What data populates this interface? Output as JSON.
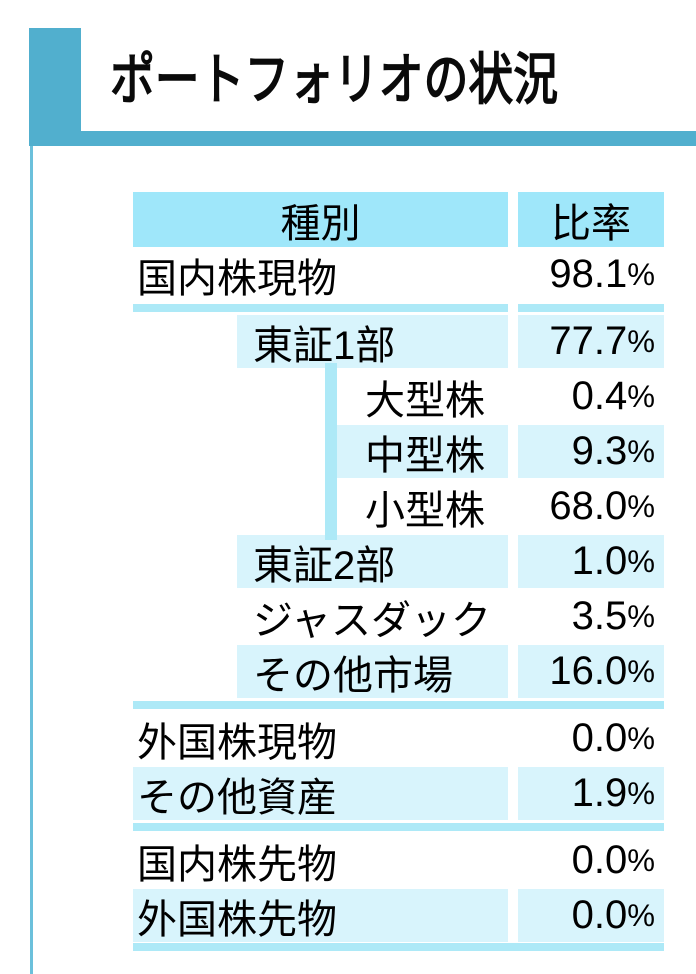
{
  "title": "ポートフォリオの状況",
  "colors": {
    "accent": "#51AFCE",
    "left_line": "#6BC0DB",
    "header_bg": "#9FE7FA",
    "separator": "#ADE9F7",
    "row_shade": "#D8F4FC"
  },
  "table": {
    "columns": {
      "type_label": "種別",
      "ratio_label": "比率"
    },
    "rows": [
      {
        "label": "国内株現物",
        "value": "98.1%",
        "level": 1,
        "shaded": false,
        "separator_before": false
      },
      {
        "label": "東証1部",
        "value": "77.7%",
        "level": 2,
        "shaded": true,
        "separator_before": true
      },
      {
        "label": "大型株",
        "value": "0.4%",
        "level": 3,
        "shaded": false,
        "separator_before": false
      },
      {
        "label": "中型株",
        "value": "9.3%",
        "level": 3,
        "shaded": true,
        "separator_before": false
      },
      {
        "label": "小型株",
        "value": "68.0%",
        "level": 3,
        "shaded": false,
        "separator_before": false
      },
      {
        "label": "東証2部",
        "value": "1.0%",
        "level": 2,
        "shaded": true,
        "separator_before": false
      },
      {
        "label": "ジャスダック",
        "value": "3.5%",
        "level": 2,
        "shaded": false,
        "separator_before": false
      },
      {
        "label": "その他市場",
        "value": "16.0%",
        "level": 2,
        "shaded": true,
        "separator_before": false
      },
      {
        "label": "外国株現物",
        "value": "0.0%",
        "level": 1,
        "shaded": false,
        "separator_before": true
      },
      {
        "label": "その他資産",
        "value": "1.9%",
        "level": 1,
        "shaded": true,
        "separator_before": false
      },
      {
        "label": "国内株先物",
        "value": "0.0%",
        "level": 1,
        "shaded": false,
        "separator_before": true
      },
      {
        "label": "外国株先物",
        "value": "0.0%",
        "level": 1,
        "shaded": true,
        "separator_before": false
      }
    ]
  }
}
